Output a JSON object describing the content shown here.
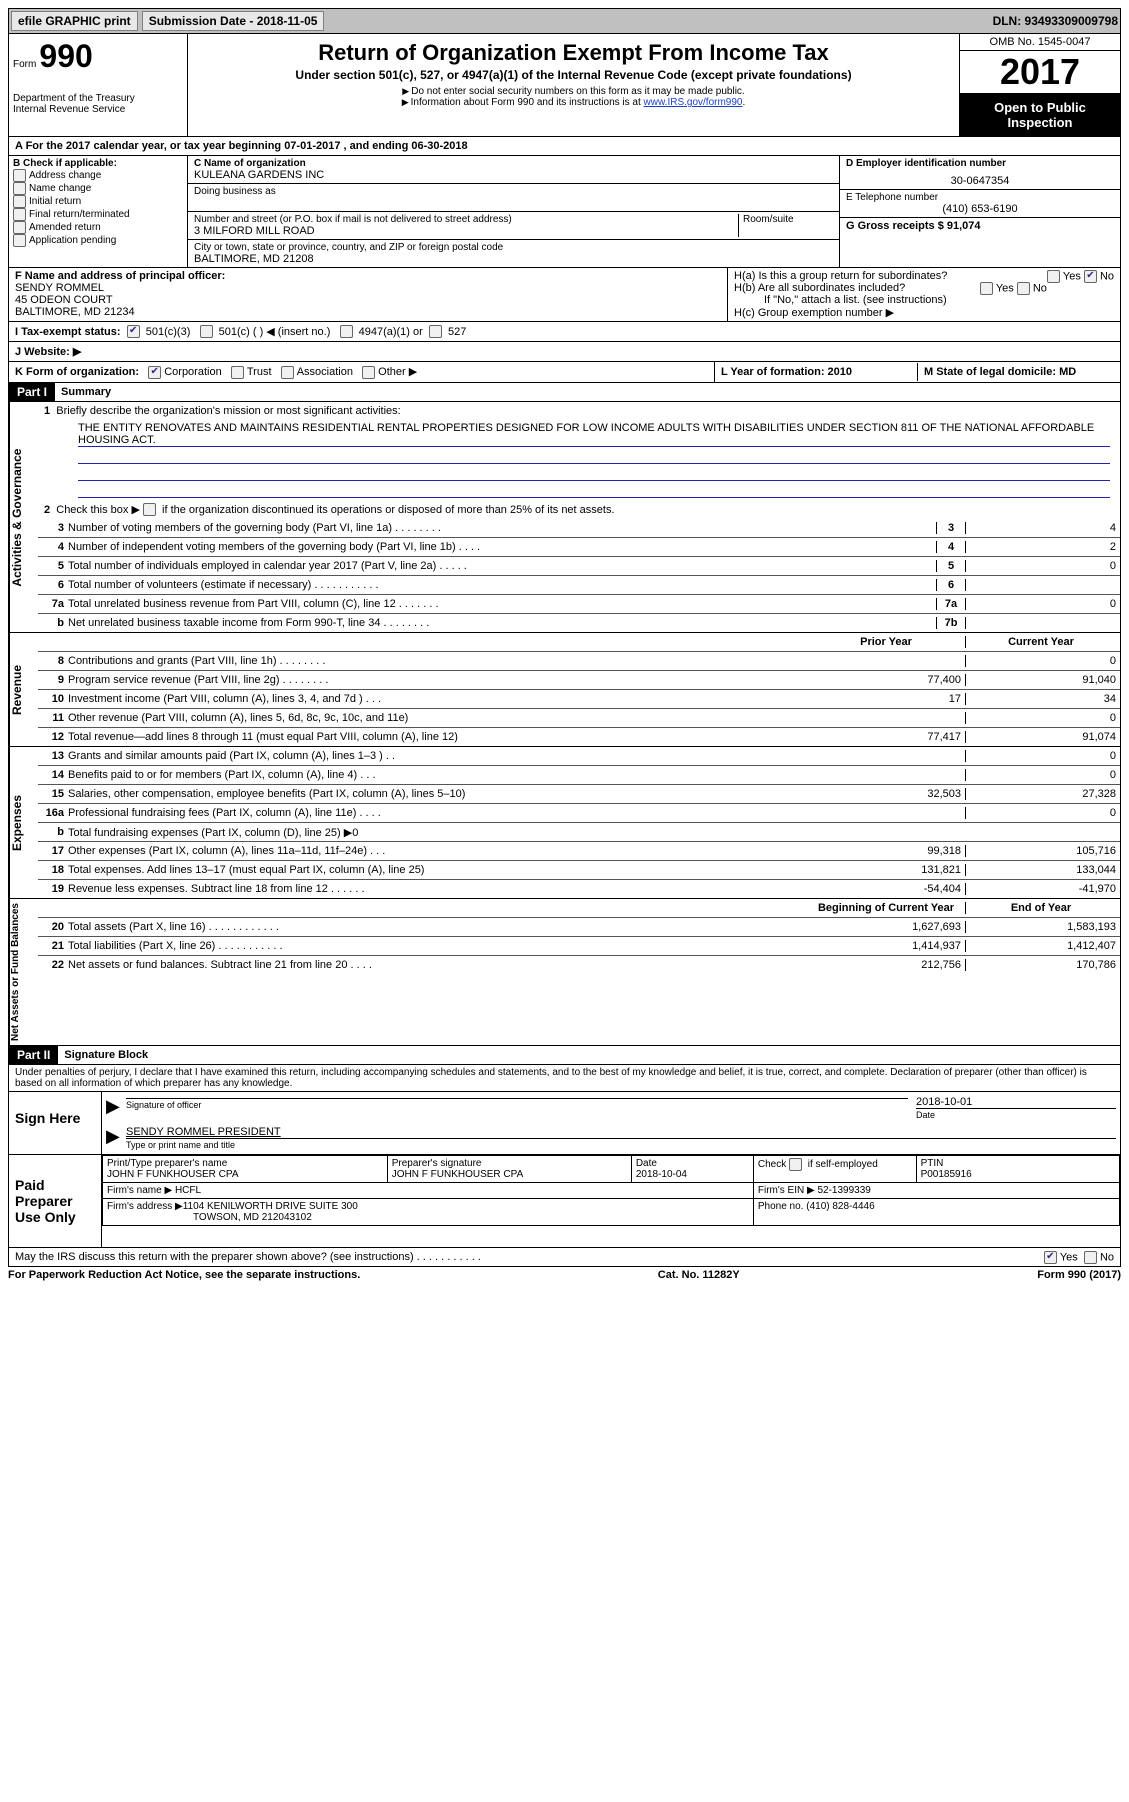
{
  "topbar": {
    "efile": "efile GRAPHIC print",
    "sub_label": "Submission Date - 2018-11-05",
    "dln": "DLN: 93493309009798"
  },
  "header": {
    "form_word": "Form",
    "form_num": "990",
    "dept1": "Department of the Treasury",
    "dept2": "Internal Revenue Service",
    "title": "Return of Organization Exempt From Income Tax",
    "subtitle": "Under section 501(c), 527, or 4947(a)(1) of the Internal Revenue Code (except private foundations)",
    "arrow1": "Do not enter social security numbers on this form as it may be made public.",
    "arrow2_pre": "Information about Form 990 and its instructions is at ",
    "arrow2_link": "www.IRS.gov/form990",
    "omb": "OMB No. 1545-0047",
    "year": "2017",
    "open1": "Open to Public",
    "open2": "Inspection"
  },
  "section_a": "A   For the 2017 calendar year, or tax year beginning 07-01-2017    , and ending 06-30-2018",
  "col_b": {
    "label": "B Check if applicable:",
    "items": [
      "Address change",
      "Name change",
      "Initial return",
      "Final return/terminated",
      "Amended return",
      "Application pending"
    ]
  },
  "col_c": {
    "name_label": "C Name of organization",
    "name": "KULEANA GARDENS INC",
    "dba_label": "Doing business as",
    "street_label": "Number and street (or P.O. box if mail is not delivered to street address)",
    "room_label": "Room/suite",
    "street": "3 MILFORD MILL ROAD",
    "city_label": "City or town, state or province, country, and ZIP or foreign postal code",
    "city": "BALTIMORE, MD  21208"
  },
  "col_d": {
    "ein_label": "D Employer identification number",
    "ein": "30-0647354",
    "phone_label": "E Telephone number",
    "phone": "(410) 653-6190",
    "gross_label": "G Gross receipts $ 91,074"
  },
  "col_f": {
    "label": "F Name and address of principal officer:",
    "name": "SENDY ROMMEL",
    "addr1": "45 ODEON COURT",
    "addr2": "BALTIMORE, MD  21234"
  },
  "col_h": {
    "ha": "H(a)  Is this a group return for subordinates?",
    "hb": "H(b)  Are all subordinates included?",
    "hb_note": "If \"No,\" attach a list. (see instructions)",
    "hc": "H(c)  Group exemption number ▶",
    "yes": "Yes",
    "no": "No"
  },
  "row_i": {
    "label": "I   Tax-exempt status:",
    "o1": "501(c)(3)",
    "o2": "501(c) (   ) ◀ (insert no.)",
    "o3": "4947(a)(1) or",
    "o4": "527"
  },
  "row_j": "J   Website: ▶",
  "row_k": {
    "label": "K Form of organization:",
    "corp": "Corporation",
    "trust": "Trust",
    "assoc": "Association",
    "other": "Other ▶"
  },
  "row_lm": {
    "l": "L Year of formation: 2010",
    "m": "M State of legal domicile: MD"
  },
  "part1": {
    "tag": "Part I",
    "title": "Summary"
  },
  "side_labels": {
    "gov": "Activities & Governance",
    "rev": "Revenue",
    "exp": "Expenses",
    "net": "Net Assets or Fund Balances"
  },
  "summary": {
    "l1_label": "Briefly describe the organization's mission or most significant activities:",
    "l1_text": "THE ENTITY RENOVATES AND MAINTAINS RESIDENTIAL RENTAL PROPERTIES DESIGNED FOR LOW INCOME ADULTS WITH DISABILITIES UNDER SECTION 811 OF THE NATIONAL AFFORDABLE HOUSING ACT.",
    "l2": "Check this box ▶        if the organization discontinued its operations or disposed of more than 25% of its net assets.",
    "lines_gov": [
      {
        "n": "3",
        "d": "Number of voting members of the governing body (Part VI, line 1a)   .    .    .    .    .    .    .    .",
        "b": "3",
        "v": "4"
      },
      {
        "n": "4",
        "d": "Number of independent voting members of the governing body (Part VI, line 1b)   .    .    .    .",
        "b": "4",
        "v": "2"
      },
      {
        "n": "5",
        "d": "Total number of individuals employed in calendar year 2017 (Part V, line 2a)   .    .    .    .    .",
        "b": "5",
        "v": "0"
      },
      {
        "n": "6",
        "d": "Total number of volunteers (estimate if necessary)   .    .    .    .    .    .    .    .    .    .    .",
        "b": "6",
        "v": ""
      },
      {
        "n": "7a",
        "d": "Total unrelated business revenue from Part VIII, column (C), line 12   .    .    .    .    .    .    .",
        "b": "7a",
        "v": "0"
      },
      {
        "n": "b",
        "d": "Net unrelated business taxable income from Form 990-T, line 34   .    .    .    .    .    .    .    .",
        "b": "7b",
        "v": ""
      }
    ],
    "prior": "Prior Year",
    "current": "Current Year",
    "lines_rev": [
      {
        "n": "8",
        "d": "Contributions and grants (Part VIII, line 1h)   .    .    .    .    .    .    .    .",
        "p": "",
        "c": "0"
      },
      {
        "n": "9",
        "d": "Program service revenue (Part VIII, line 2g)   .    .    .    .    .    .    .    .",
        "p": "77,400",
        "c": "91,040"
      },
      {
        "n": "10",
        "d": "Investment income (Part VIII, column (A), lines 3, 4, and 7d )   .    .    .",
        "p": "17",
        "c": "34"
      },
      {
        "n": "11",
        "d": "Other revenue (Part VIII, column (A), lines 5, 6d, 8c, 9c, 10c, and 11e)",
        "p": "",
        "c": "0"
      },
      {
        "n": "12",
        "d": "Total revenue—add lines 8 through 11 (must equal Part VIII, column (A), line 12)",
        "p": "77,417",
        "c": "91,074"
      }
    ],
    "lines_exp": [
      {
        "n": "13",
        "d": "Grants and similar amounts paid (Part IX, column (A), lines 1–3 )   .    .",
        "p": "",
        "c": "0"
      },
      {
        "n": "14",
        "d": "Benefits paid to or for members (Part IX, column (A), line 4)   .    .    .",
        "p": "",
        "c": "0"
      },
      {
        "n": "15",
        "d": "Salaries, other compensation, employee benefits (Part IX, column (A), lines 5–10)",
        "p": "32,503",
        "c": "27,328"
      },
      {
        "n": "16a",
        "d": "Professional fundraising fees (Part IX, column (A), line 11e)   .    .    .    .",
        "p": "",
        "c": "0"
      },
      {
        "n": "b",
        "d": "Total fundraising expenses (Part IX, column (D), line 25) ▶0",
        "p": "",
        "c": "",
        "shade": true
      },
      {
        "n": "17",
        "d": "Other expenses (Part IX, column (A), lines 11a–11d, 11f–24e)   .    .    .",
        "p": "99,318",
        "c": "105,716"
      },
      {
        "n": "18",
        "d": "Total expenses. Add lines 13–17 (must equal Part IX, column (A), line 25)",
        "p": "131,821",
        "c": "133,044"
      },
      {
        "n": "19",
        "d": "Revenue less expenses. Subtract line 18 from line 12   .    .    .    .    .    .",
        "p": "-54,404",
        "c": "-41,970"
      }
    ],
    "begin": "Beginning of Current Year",
    "end": "End of Year",
    "lines_net": [
      {
        "n": "20",
        "d": "Total assets (Part X, line 16)   .    .    .    .    .    .    .    .    .    .    .    .",
        "p": "1,627,693",
        "c": "1,583,193"
      },
      {
        "n": "21",
        "d": "Total liabilities (Part X, line 26)   .    .    .    .    .    .    .    .    .    .    .",
        "p": "1,414,937",
        "c": "1,412,407"
      },
      {
        "n": "22",
        "d": "Net assets or fund balances. Subtract line 21 from line 20   .    .    .    .",
        "p": "212,756",
        "c": "170,786"
      }
    ]
  },
  "part2": {
    "tag": "Part II",
    "title": "Signature Block",
    "penalties": "Under penalties of perjury, I declare that I have examined this return, including accompanying schedules and statements, and to the best of my knowledge and belief, it is true, correct, and complete. Declaration of preparer (other than officer) is based on all information of which preparer has any knowledge."
  },
  "sign": {
    "here": "Sign Here",
    "sig_officer": "Signature of officer",
    "date_label": "Date",
    "date": "2018-10-01",
    "name": "SENDY ROMMEL  PRESIDENT",
    "name_label": "Type or print name and title"
  },
  "prep": {
    "label": "Paid Preparer Use Only",
    "pname_label": "Print/Type preparer's name",
    "pname": "JOHN F FUNKHOUSER CPA",
    "psig_label": "Preparer's signature",
    "psig": "JOHN F FUNKHOUSER CPA",
    "pdate_label": "Date",
    "pdate": "2018-10-04",
    "check_label": "Check        if self-employed",
    "ptin_label": "PTIN",
    "ptin": "P00185916",
    "firm_label": "Firm's name      ▶",
    "firm": "HCFL",
    "ein_label": "Firm's EIN ▶",
    "ein": "52-1399339",
    "addr_label": "Firm's address ▶",
    "addr1": "1104 KENILWORTH DRIVE SUITE 300",
    "addr2": "TOWSON, MD  212043102",
    "phone_label": "Phone no.",
    "phone": "(410) 828-4446",
    "irs_q": "May the IRS discuss this return with the preparer shown above? (see instructions)   .    .    .    .    .    .    .    .    .    .    .",
    "yes": "Yes",
    "no": "No"
  },
  "footer": {
    "left": "For Paperwork Reduction Act Notice, see the separate instructions.",
    "mid": "Cat. No. 11282Y",
    "right": "Form 990 (2017)"
  }
}
